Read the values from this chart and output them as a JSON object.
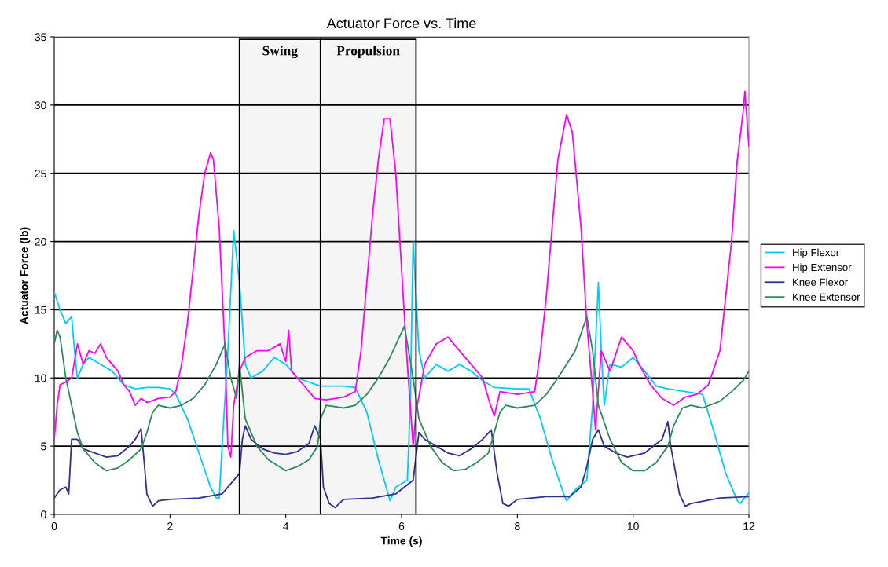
{
  "chart_data": {
    "type": "line",
    "title": "Actuator Force vs. Time",
    "xlabel": "Time (s)",
    "ylabel": "Actuator Force (lb)",
    "xlim": [
      0,
      12
    ],
    "xticks": [
      0,
      2,
      4,
      6,
      8,
      10,
      12
    ],
    "ylim": [
      0,
      35
    ],
    "yticks": [
      0,
      5,
      10,
      15,
      20,
      25,
      30,
      35
    ],
    "grid": "y",
    "legend": "right",
    "marker": "none",
    "line_style": "solid",
    "bands": [
      {
        "axis": "x",
        "from": 3.2,
        "to": 4.6,
        "label": "Swing",
        "color": "#000000"
      },
      {
        "axis": "x",
        "from": 4.6,
        "to": 6.25,
        "label": "Propulsion",
        "color": "#000000"
      }
    ],
    "series": [
      {
        "name": "Hip Flexor",
        "color": "#00ccff",
        "x": [
          0,
          0.1,
          0.2,
          0.3,
          0.35,
          0.4,
          0.5,
          0.6,
          0.8,
          1.0,
          1.2,
          1.4,
          1.6,
          1.8,
          2.0,
          2.1,
          2.3,
          2.5,
          2.7,
          2.8,
          2.85,
          2.9,
          3.0,
          3.1,
          3.2,
          3.3,
          3.4,
          3.6,
          3.8,
          4.0,
          4.2,
          4.4,
          4.6,
          5.0,
          5.2,
          5.4,
          5.6,
          5.8,
          5.9,
          6.1,
          6.15,
          6.2,
          6.3,
          6.4,
          6.6,
          6.8,
          7.0,
          7.2,
          7.4,
          7.6,
          8.0,
          8.2,
          8.4,
          8.6,
          8.8,
          8.85,
          9.0,
          9.2,
          9.3,
          9.4,
          9.45,
          9.5,
          9.6,
          9.8,
          10.0,
          10.2,
          10.4,
          10.6,
          10.9,
          11.2,
          11.4,
          11.6,
          11.8,
          11.85,
          12
        ],
        "values": [
          16.3,
          15,
          14,
          14.5,
          12,
          10,
          11,
          11.5,
          11,
          10.5,
          9.5,
          9.2,
          9.3,
          9.3,
          9.2,
          8.8,
          7,
          4.5,
          2,
          1.2,
          1.2,
          5,
          12,
          20.8,
          17,
          11,
          10,
          10.5,
          11.5,
          11,
          10,
          9.7,
          9.4,
          9.4,
          9.3,
          7.5,
          4,
          1,
          2,
          2.5,
          8,
          20,
          12,
          10,
          11,
          10.5,
          11,
          10.5,
          9.8,
          9.3,
          9.2,
          9.2,
          7,
          4,
          1.5,
          1,
          1.8,
          2.5,
          8,
          17,
          12,
          8,
          11,
          10.8,
          11.5,
          10.5,
          9.4,
          9.2,
          9,
          8.8,
          6,
          3,
          1,
          0.8,
          1.6
        ]
      },
      {
        "name": "Hip Extensor",
        "color": "#ff00ff",
        "x": [
          0,
          0.05,
          0.1,
          0.2,
          0.3,
          0.4,
          0.5,
          0.6,
          0.7,
          0.8,
          0.9,
          1.0,
          1.1,
          1.2,
          1.3,
          1.4,
          1.5,
          1.6,
          1.8,
          2.0,
          2.1,
          2.2,
          2.3,
          2.4,
          2.5,
          2.6,
          2.7,
          2.75,
          2.85,
          2.95,
          3.0,
          3.05,
          3.1,
          3.2,
          3.3,
          3.5,
          3.7,
          3.9,
          4.0,
          4.05,
          4.1,
          4.3,
          4.5,
          4.7,
          5.0,
          5.2,
          5.3,
          5.4,
          5.5,
          5.6,
          5.7,
          5.8,
          5.9,
          6.0,
          6.1,
          6.2,
          6.25,
          6.4,
          6.6,
          6.8,
          7.0,
          7.2,
          7.4,
          7.5,
          7.6,
          7.7,
          8.0,
          8.3,
          8.4,
          8.5,
          8.6,
          8.7,
          8.85,
          8.95,
          9.1,
          9.2,
          9.3,
          9.35,
          9.45,
          9.6,
          9.8,
          10.0,
          10.1,
          10.3,
          10.5,
          10.7,
          10.9,
          11.1,
          11.3,
          11.5,
          11.6,
          11.7,
          11.8,
          11.9,
          11.93,
          12.0
        ],
        "values": [
          5.5,
          8,
          9.5,
          9.7,
          10,
          12.5,
          11,
          12,
          11.8,
          12.5,
          11.5,
          11,
          10.5,
          9.5,
          9,
          8,
          8.5,
          8.2,
          8.5,
          8.6,
          9,
          11,
          14,
          18,
          22,
          25,
          26.5,
          26,
          21,
          12,
          5,
          4.2,
          8,
          10.5,
          11.5,
          12,
          12,
          12.5,
          11.2,
          13.5,
          10.5,
          9.5,
          8.5,
          8.4,
          8.6,
          9,
          12,
          17,
          22,
          26,
          29,
          29,
          25,
          18,
          11,
          5,
          7.5,
          11,
          12.5,
          13,
          12,
          11,
          10,
          8.5,
          7.2,
          9,
          8.8,
          9,
          12,
          16,
          21,
          26,
          29.3,
          28,
          21,
          14,
          9,
          6.2,
          12,
          10.5,
          13,
          12,
          11,
          9.5,
          8.5,
          8,
          8.6,
          8.8,
          9.5,
          12,
          16,
          20,
          26,
          29.5,
          31,
          27
        ]
      },
      {
        "name": "Knee Flexor",
        "color": "#2e3192",
        "x": [
          0,
          0.1,
          0.2,
          0.25,
          0.3,
          0.4,
          0.5,
          0.7,
          0.9,
          1.1,
          1.3,
          1.4,
          1.5,
          1.55,
          1.6,
          1.7,
          1.8,
          2.0,
          2.5,
          2.9,
          3.1,
          3.2,
          3.25,
          3.3,
          3.4,
          3.6,
          3.8,
          4.0,
          4.2,
          4.4,
          4.5,
          4.6,
          4.65,
          4.75,
          4.85,
          5.0,
          5.5,
          5.9,
          6.2,
          6.3,
          6.4,
          6.6,
          6.8,
          7.0,
          7.2,
          7.4,
          7.55,
          7.65,
          7.75,
          7.85,
          8.0,
          8.5,
          8.9,
          9.1,
          9.2,
          9.3,
          9.4,
          9.5,
          9.7,
          9.9,
          10.2,
          10.5,
          10.6,
          10.65,
          10.8,
          10.9,
          11.0,
          11.5,
          12
        ],
        "values": [
          1.2,
          1.8,
          2,
          1.5,
          5.5,
          5.5,
          4.8,
          4.5,
          4.2,
          4.3,
          5,
          5.5,
          6.3,
          4,
          1.5,
          0.6,
          1,
          1.1,
          1.2,
          1.5,
          2.5,
          3,
          5.5,
          6.5,
          5.5,
          4.8,
          4.5,
          4.4,
          4.6,
          5.2,
          6.5,
          5.5,
          2,
          0.8,
          0.5,
          1.1,
          1.2,
          1.5,
          2.5,
          6,
          5.5,
          5,
          4.5,
          4.3,
          4.8,
          5.5,
          6.2,
          3,
          0.8,
          0.6,
          1.1,
          1.3,
          1.3,
          2,
          3.5,
          5.5,
          6.2,
          5,
          4.5,
          4.2,
          4.5,
          5.5,
          6.8,
          5,
          1.5,
          0.6,
          0.8,
          1.2,
          1.3
        ]
      },
      {
        "name": "Knee Extensor",
        "color": "#2e8b57",
        "x": [
          0,
          0.05,
          0.1,
          0.2,
          0.3,
          0.4,
          0.5,
          0.7,
          0.9,
          1.1,
          1.3,
          1.5,
          1.6,
          1.7,
          1.8,
          2.0,
          2.2,
          2.4,
          2.6,
          2.8,
          2.95,
          3.05,
          3.15,
          3.2,
          3.3,
          3.5,
          3.7,
          4.0,
          4.2,
          4.4,
          4.55,
          4.6,
          4.7,
          5.0,
          5.2,
          5.4,
          5.6,
          5.8,
          6.05,
          6.2,
          6.3,
          6.5,
          6.7,
          6.9,
          7.1,
          7.3,
          7.5,
          7.6,
          7.7,
          7.8,
          8.0,
          8.3,
          8.5,
          8.7,
          9.0,
          9.2,
          9.3,
          9.4,
          9.6,
          9.8,
          10.0,
          10.2,
          10.4,
          10.6,
          10.7,
          10.85,
          11.0,
          11.2,
          11.5,
          11.7,
          11.9,
          12
        ],
        "values": [
          12.5,
          13.5,
          13,
          10,
          8,
          6,
          4.8,
          3.8,
          3.2,
          3.4,
          4,
          4.8,
          6,
          7.5,
          8,
          7.8,
          8,
          8.5,
          9.5,
          11,
          12.5,
          10,
          8.5,
          11,
          7,
          5,
          4,
          3.2,
          3.5,
          4,
          5,
          7,
          8,
          7.8,
          8,
          8.8,
          10,
          11.5,
          13.8,
          10,
          7,
          5,
          3.8,
          3.2,
          3.3,
          3.8,
          4.5,
          6,
          7.5,
          8,
          7.8,
          8,
          8.8,
          10,
          12,
          14.5,
          12,
          8,
          5.5,
          3.8,
          3.2,
          3.2,
          3.8,
          5,
          6.5,
          7.8,
          8,
          7.8,
          8.3,
          9,
          9.8,
          10.5
        ]
      }
    ]
  }
}
